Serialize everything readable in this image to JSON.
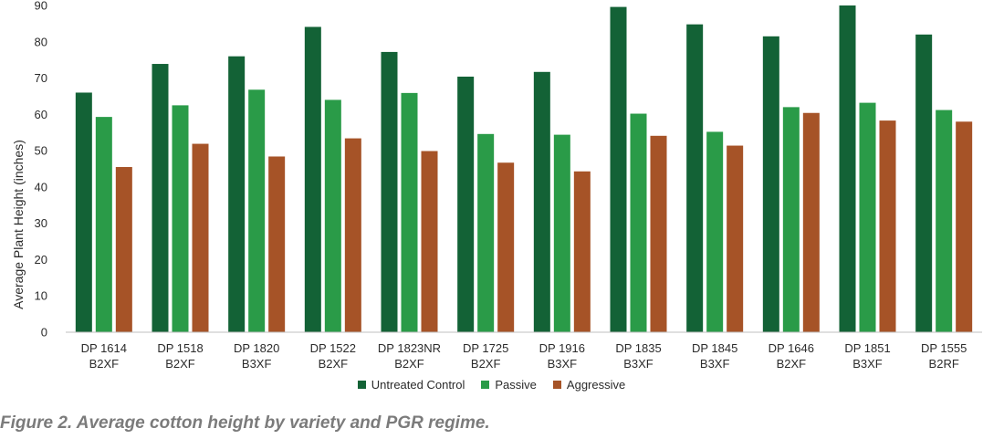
{
  "chart_data": {
    "type": "bar",
    "title": "",
    "ylabel": "Average Plant Height (inches)",
    "xlabel": "",
    "ylim": [
      0,
      90
    ],
    "yticks": [
      0,
      10,
      20,
      30,
      40,
      50,
      60,
      70,
      80,
      90
    ],
    "grid": false,
    "legend_position": "bottom",
    "categories": [
      [
        "DP 1614",
        "B2XF"
      ],
      [
        "DP 1518",
        "B2XF"
      ],
      [
        "DP 1820",
        "B3XF"
      ],
      [
        "DP 1522",
        "B2XF"
      ],
      [
        "DP 1823NR",
        "B2XF"
      ],
      [
        "DP 1725",
        "B2XF"
      ],
      [
        "DP 1916",
        "B3XF"
      ],
      [
        "DP 1835",
        "B3XF"
      ],
      [
        "DP 1845",
        "B3XF"
      ],
      [
        "DP 1646",
        "B2XF"
      ],
      [
        "DP 1851",
        "B3XF"
      ],
      [
        "DP 1555",
        "B2RF"
      ]
    ],
    "series": [
      {
        "name": "Untreated Control",
        "color": "#136236",
        "values": [
          66,
          73.9,
          76,
          84.1,
          77.2,
          70.4,
          71.7,
          89.6,
          84.8,
          81.5,
          90,
          82
        ]
      },
      {
        "name": "Passive",
        "color": "#2a9b48",
        "values": [
          59.3,
          62.5,
          66.8,
          64,
          65.9,
          54.6,
          54.4,
          60.2,
          55.2,
          62,
          63.2,
          61.2
        ]
      },
      {
        "name": "Aggressive",
        "color": "#a65327",
        "values": [
          45.5,
          51.9,
          48.4,
          53.4,
          49.9,
          46.7,
          44.3,
          54.1,
          51.4,
          60.4,
          58.3,
          58
        ]
      }
    ]
  },
  "caption": "Figure 2. Average cotton height by variety and PGR regime."
}
